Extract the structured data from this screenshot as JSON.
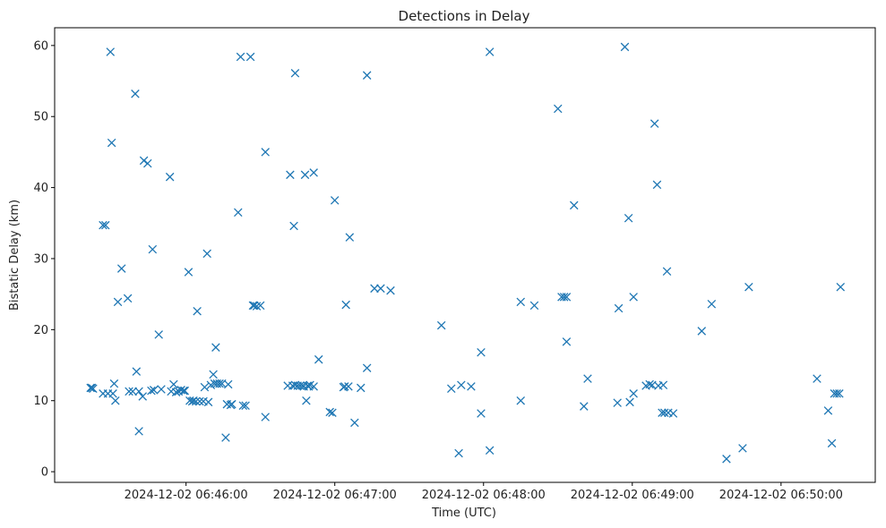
{
  "chart_data": {
    "type": "scatter",
    "title": "Detections in Delay",
    "xlabel": "Time (UTC)",
    "ylabel": "Bistatic Delay (km)",
    "marker": "x",
    "color": "#1f77b4",
    "grid": false,
    "xlim": [
      "2024-12-02 06:45:07",
      "2024-12-02 06:50:38"
    ],
    "ylim": [
      -1.5,
      62.5
    ],
    "xticks": [
      "2024-12-02 06:46:00",
      "2024-12-02 06:47:00",
      "2024-12-02 06:48:00",
      "2024-12-02 06:49:00",
      "2024-12-02 06:50:00"
    ],
    "yticks": [
      0,
      10,
      20,
      30,
      40,
      50,
      60
    ],
    "points": [
      [
        "2024-12-02 06:45:21.5",
        11.8
      ],
      [
        "2024-12-02 06:45:22.0",
        11.8
      ],
      [
        "2024-12-02 06:45:22.5",
        11.7
      ],
      [
        "2024-12-02 06:45:26.5",
        11.0
      ],
      [
        "2024-12-02 06:45:28.5",
        11.0
      ],
      [
        "2024-12-02 06:45:30.5",
        11.0
      ],
      [
        "2024-12-02 06:45:31.0",
        12.4
      ],
      [
        "2024-12-02 06:45:31.5",
        10.0
      ],
      [
        "2024-12-02 06:45:26.5",
        34.7
      ],
      [
        "2024-12-02 06:45:27.5",
        34.7
      ],
      [
        "2024-12-02 06:45:29.5",
        59.1
      ],
      [
        "2024-12-02 06:45:30.0",
        46.3
      ],
      [
        "2024-12-02 06:45:32.5",
        23.9
      ],
      [
        "2024-12-02 06:45:34.0",
        28.6
      ],
      [
        "2024-12-02 06:45:36.5",
        24.4
      ],
      [
        "2024-12-02 06:45:37.0",
        11.3
      ],
      [
        "2024-12-02 06:45:38.5",
        11.3
      ],
      [
        "2024-12-02 06:45:41.0",
        11.3
      ],
      [
        "2024-12-02 06:45:42.5",
        10.6
      ],
      [
        "2024-12-02 06:45:40.0",
        14.1
      ],
      [
        "2024-12-02 06:45:41.0",
        5.7
      ],
      [
        "2024-12-02 06:45:39.5",
        53.2
      ],
      [
        "2024-12-02 06:45:43.0",
        43.8
      ],
      [
        "2024-12-02 06:45:44.5",
        43.4
      ],
      [
        "2024-12-02 06:45:46.0",
        11.4
      ],
      [
        "2024-12-02 06:45:47.0",
        11.5
      ],
      [
        "2024-12-02 06:45:46.5",
        31.3
      ],
      [
        "2024-12-02 06:45:49.0",
        19.3
      ],
      [
        "2024-12-02 06:45:50.0",
        11.6
      ],
      [
        "2024-12-02 06:45:53.5",
        41.5
      ],
      [
        "2024-12-02 06:45:54.0",
        11.3
      ],
      [
        "2024-12-02 06:45:55.0",
        12.3
      ],
      [
        "2024-12-02 06:45:56.0",
        11.2
      ],
      [
        "2024-12-02 06:45:57.0",
        11.3
      ],
      [
        "2024-12-02 06:45:58.0",
        11.5
      ],
      [
        "2024-12-02 06:45:59.0",
        11.4
      ],
      [
        "2024-12-02 06:45:59.5",
        11.4
      ],
      [
        "2024-12-02 06:46:01.0",
        28.1
      ],
      [
        "2024-12-02 06:46:01.5",
        10.0
      ],
      [
        "2024-12-02 06:46:02.5",
        9.9
      ],
      [
        "2024-12-02 06:46:03.0",
        10.0
      ],
      [
        "2024-12-02 06:46:04.0",
        9.9
      ],
      [
        "2024-12-02 06:46:04.5",
        22.6
      ],
      [
        "2024-12-02 06:46:05.5",
        9.9
      ],
      [
        "2024-12-02 06:46:07.0",
        9.9
      ],
      [
        "2024-12-02 06:46:07.5",
        11.9
      ],
      [
        "2024-12-02 06:46:09.0",
        9.8
      ],
      [
        "2024-12-02 06:46:10.0",
        12.2
      ],
      [
        "2024-12-02 06:46:11.0",
        13.7
      ],
      [
        "2024-12-02 06:46:11.5",
        12.4
      ],
      [
        "2024-12-02 06:46:12.5",
        12.4
      ],
      [
        "2024-12-02 06:46:13.5",
        12.4
      ],
      [
        "2024-12-02 06:46:14.5",
        12.4
      ],
      [
        "2024-12-02 06:46:08.5",
        30.7
      ],
      [
        "2024-12-02 06:46:12.0",
        17.5
      ],
      [
        "2024-12-02 06:46:16.0",
        4.8
      ],
      [
        "2024-12-02 06:46:16.5",
        9.5
      ],
      [
        "2024-12-02 06:46:18.0",
        9.4
      ],
      [
        "2024-12-02 06:46:18.5",
        9.5
      ],
      [
        "2024-12-02 06:46:17.0",
        12.3
      ],
      [
        "2024-12-02 06:46:21.0",
        36.5
      ],
      [
        "2024-12-02 06:46:22.0",
        58.4
      ],
      [
        "2024-12-02 06:46:23.0",
        9.3
      ],
      [
        "2024-12-02 06:46:24.0",
        9.3
      ],
      [
        "2024-12-02 06:46:26.0",
        58.4
      ],
      [
        "2024-12-02 06:46:27.0",
        23.4
      ],
      [
        "2024-12-02 06:46:27.5",
        23.4
      ],
      [
        "2024-12-02 06:46:28.5",
        23.3
      ],
      [
        "2024-12-02 06:46:30.0",
        23.4
      ],
      [
        "2024-12-02 06:46:32.0",
        45.0
      ],
      [
        "2024-12-02 06:46:32.0",
        7.7
      ],
      [
        "2024-12-02 06:46:41.0",
        12.1
      ],
      [
        "2024-12-02 06:46:42.0",
        41.8
      ],
      [
        "2024-12-02 06:46:43.0",
        12.1
      ],
      [
        "2024-12-02 06:46:43.5",
        34.6
      ],
      [
        "2024-12-02 06:46:44.0",
        12.2
      ],
      [
        "2024-12-02 06:46:44.0",
        56.1
      ],
      [
        "2024-12-02 06:46:45.0",
        12.1
      ],
      [
        "2024-12-02 06:46:46.0",
        12.1
      ],
      [
        "2024-12-02 06:46:47.0",
        12.1
      ],
      [
        "2024-12-02 06:46:47.5",
        12.0
      ],
      [
        "2024-12-02 06:46:48.0",
        41.8
      ],
      [
        "2024-12-02 06:46:48.5",
        10.0
      ],
      [
        "2024-12-02 06:46:49.0",
        12.1
      ],
      [
        "2024-12-02 06:46:49.5",
        12.0
      ],
      [
        "2024-12-02 06:46:50.0",
        12.2
      ],
      [
        "2024-12-02 06:46:51.5",
        42.1
      ],
      [
        "2024-12-02 06:46:51.5",
        12.0
      ],
      [
        "2024-12-02 06:46:53.5",
        15.8
      ],
      [
        "2024-12-02 06:46:58.0",
        8.4
      ],
      [
        "2024-12-02 06:46:59.0",
        8.3
      ],
      [
        "2024-12-02 06:47:00.0",
        38.2
      ],
      [
        "2024-12-02 06:47:03.5",
        11.9
      ],
      [
        "2024-12-02 06:47:04.0",
        12.0
      ],
      [
        "2024-12-02 06:47:04.5",
        23.5
      ],
      [
        "2024-12-02 06:47:05.5",
        12.0
      ],
      [
        "2024-12-02 06:47:06.0",
        33.0
      ],
      [
        "2024-12-02 06:47:08.0",
        6.9
      ],
      [
        "2024-12-02 06:47:10.5",
        11.8
      ],
      [
        "2024-12-02 06:47:13.0",
        55.8
      ],
      [
        "2024-12-02 06:47:13.0",
        14.6
      ],
      [
        "2024-12-02 06:47:16.0",
        25.8
      ],
      [
        "2024-12-02 06:47:18.5",
        25.8
      ],
      [
        "2024-12-02 06:47:22.5",
        25.5
      ],
      [
        "2024-12-02 06:47:43.0",
        20.6
      ],
      [
        "2024-12-02 06:47:47.0",
        11.7
      ],
      [
        "2024-12-02 06:47:50.0",
        2.6
      ],
      [
        "2024-12-02 06:47:51.0",
        12.2
      ],
      [
        "2024-12-02 06:47:55.0",
        12.0
      ],
      [
        "2024-12-02 06:47:59.0",
        16.8
      ],
      [
        "2024-12-02 06:47:59.0",
        8.2
      ],
      [
        "2024-12-02 06:48:02.5",
        3.0
      ],
      [
        "2024-12-02 06:48:02.5",
        59.1
      ],
      [
        "2024-12-02 06:48:15.0",
        23.9
      ],
      [
        "2024-12-02 06:48:15.0",
        10.0
      ],
      [
        "2024-12-02 06:48:20.5",
        23.4
      ],
      [
        "2024-12-02 06:48:30.0",
        51.1
      ],
      [
        "2024-12-02 06:48:31.5",
        24.6
      ],
      [
        "2024-12-02 06:48:32.5",
        24.6
      ],
      [
        "2024-12-02 06:48:33.5",
        24.6
      ],
      [
        "2024-12-02 06:48:33.5",
        18.3
      ],
      [
        "2024-12-02 06:48:36.5",
        37.5
      ],
      [
        "2024-12-02 06:48:40.5",
        9.2
      ],
      [
        "2024-12-02 06:48:42.0",
        13.1
      ],
      [
        "2024-12-02 06:48:54.0",
        9.7
      ],
      [
        "2024-12-02 06:48:54.5",
        23.0
      ],
      [
        "2024-12-02 06:48:57.0",
        59.8
      ],
      [
        "2024-12-02 06:48:58.5",
        35.7
      ],
      [
        "2024-12-02 06:48:59.0",
        9.8
      ],
      [
        "2024-12-02 06:49:00.5",
        11.0
      ],
      [
        "2024-12-02 06:49:00.5",
        24.6
      ],
      [
        "2024-12-02 06:49:05.5",
        12.1
      ],
      [
        "2024-12-02 06:49:07.0",
        12.3
      ],
      [
        "2024-12-02 06:49:08.0",
        12.2
      ],
      [
        "2024-12-02 06:49:09.0",
        49.0
      ],
      [
        "2024-12-02 06:49:10.0",
        40.4
      ],
      [
        "2024-12-02 06:49:10.5",
        12.1
      ],
      [
        "2024-12-02 06:49:12.0",
        8.3
      ],
      [
        "2024-12-02 06:49:12.5",
        12.2
      ],
      [
        "2024-12-02 06:49:13.0",
        8.3
      ],
      [
        "2024-12-02 06:49:14.0",
        28.2
      ],
      [
        "2024-12-02 06:49:14.5",
        8.3
      ],
      [
        "2024-12-02 06:49:16.5",
        8.2
      ],
      [
        "2024-12-02 06:49:28.0",
        19.8
      ],
      [
        "2024-12-02 06:49:32.0",
        23.6
      ],
      [
        "2024-12-02 06:49:38.0",
        1.8
      ],
      [
        "2024-12-02 06:49:44.5",
        3.3
      ],
      [
        "2024-12-02 06:49:47.0",
        26.0
      ],
      [
        "2024-12-02 06:50:14.5",
        13.1
      ],
      [
        "2024-12-02 06:50:19.0",
        8.6
      ],
      [
        "2024-12-02 06:50:20.5",
        4.0
      ],
      [
        "2024-12-02 06:50:21.5",
        11.0
      ],
      [
        "2024-12-02 06:50:22.5",
        11.0
      ],
      [
        "2024-12-02 06:50:23.5",
        11.0
      ],
      [
        "2024-12-02 06:50:24.0",
        26.0
      ]
    ]
  }
}
